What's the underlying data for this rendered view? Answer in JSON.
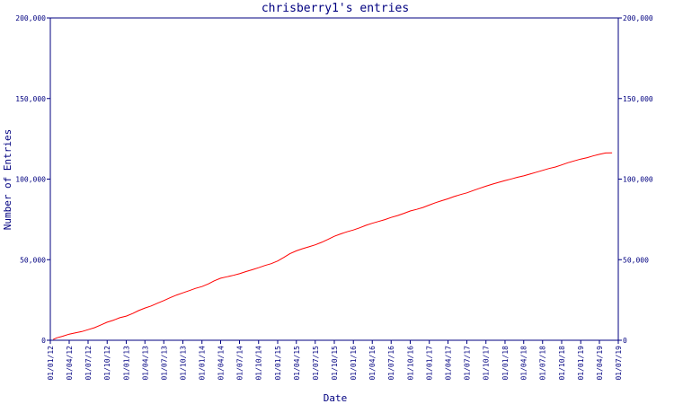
{
  "chart_data": {
    "type": "line",
    "title": "chrisberry1's entries",
    "xlabel": "Date",
    "ylabel": "Number of Entries",
    "ylim": [
      0,
      200000
    ],
    "y_ticks": [
      0,
      50000,
      100000,
      150000,
      200000
    ],
    "y_tick_labels": [
      "0",
      "50,000",
      "100,000",
      "150,000",
      "200,000"
    ],
    "x_range": [
      "2012-01-01",
      "2019-07-01"
    ],
    "x_ticks": [
      "2012-01-01",
      "2012-04-01",
      "2012-07-01",
      "2012-10-01",
      "2013-01-01",
      "2013-04-01",
      "2013-07-01",
      "2013-10-01",
      "2014-01-01",
      "2014-04-01",
      "2014-07-01",
      "2014-10-01",
      "2015-01-01",
      "2015-04-01",
      "2015-07-01",
      "2015-10-01",
      "2016-01-01",
      "2016-04-01",
      "2016-07-01",
      "2016-10-01",
      "2017-01-01",
      "2017-04-01",
      "2017-07-01",
      "2017-10-01",
      "2018-01-01",
      "2018-04-01",
      "2018-07-01",
      "2018-10-01",
      "2019-01-01",
      "2019-04-01",
      "2019-07-01"
    ],
    "x_tick_labels": [
      "01/01/12",
      "01/04/12",
      "01/07/12",
      "01/10/12",
      "01/01/13",
      "01/04/13",
      "01/07/13",
      "01/10/13",
      "01/01/14",
      "01/04/14",
      "01/07/14",
      "01/10/14",
      "01/01/15",
      "01/04/15",
      "01/07/15",
      "01/10/15",
      "01/01/16",
      "01/04/16",
      "01/07/16",
      "01/10/16",
      "01/01/17",
      "01/04/17",
      "01/07/17",
      "01/10/17",
      "01/01/18",
      "01/04/18",
      "01/07/18",
      "01/10/18",
      "01/01/19",
      "01/04/19",
      "01/07/19"
    ],
    "grid": false,
    "y_axis_right_mirror": true,
    "colors": {
      "frame": "#000080",
      "text": "#000080",
      "line": "#ff0000",
      "background": "#ffffff"
    },
    "series": [
      {
        "x": [
          "2012-01-15",
          "2012-02-01",
          "2012-03-01",
          "2012-04-01",
          "2012-05-01",
          "2012-06-01",
          "2012-07-01",
          "2012-08-01",
          "2012-09-01",
          "2012-10-01",
          "2012-11-01",
          "2012-12-01",
          "2013-01-01",
          "2013-02-01",
          "2013-03-01",
          "2013-04-01",
          "2013-05-01",
          "2013-06-01",
          "2013-07-01",
          "2013-08-01",
          "2013-09-01",
          "2013-10-01",
          "2013-11-01",
          "2013-12-01",
          "2014-01-01",
          "2014-02-01",
          "2014-03-01",
          "2014-04-01",
          "2014-05-01",
          "2014-06-01",
          "2014-07-01",
          "2014-08-01",
          "2014-09-01",
          "2014-10-01",
          "2014-11-01",
          "2014-12-01",
          "2015-01-01",
          "2015-02-01",
          "2015-03-01",
          "2015-04-01",
          "2015-05-01",
          "2015-06-01",
          "2015-07-01",
          "2015-08-01",
          "2015-09-01",
          "2015-10-01",
          "2015-11-01",
          "2015-12-01",
          "2016-01-01",
          "2016-02-01",
          "2016-03-01",
          "2016-04-01",
          "2016-05-01",
          "2016-06-01",
          "2016-07-01",
          "2016-08-01",
          "2016-09-01",
          "2016-10-01",
          "2016-11-01",
          "2016-12-01",
          "2017-01-01",
          "2017-02-01",
          "2017-03-01",
          "2017-04-01",
          "2017-05-01",
          "2017-06-01",
          "2017-07-01",
          "2017-08-01",
          "2017-09-01",
          "2017-10-01",
          "2017-11-01",
          "2017-12-01",
          "2018-01-01",
          "2018-02-01",
          "2018-03-01",
          "2018-04-01",
          "2018-05-01",
          "2018-06-01",
          "2018-07-01",
          "2018-08-01",
          "2018-09-01",
          "2018-10-01",
          "2018-11-01",
          "2018-12-01",
          "2019-01-01",
          "2019-02-01",
          "2019-03-01",
          "2019-04-01",
          "2019-05-01",
          "2019-06-01"
        ],
        "y": [
          500,
          1500,
          2500,
          3800,
          4600,
          5400,
          6600,
          7800,
          9500,
          11200,
          12500,
          14000,
          15000,
          16600,
          18400,
          20000,
          21300,
          23000,
          24600,
          26400,
          28100,
          29400,
          30800,
          32200,
          33300,
          35000,
          36900,
          38500,
          39400,
          40300,
          41300,
          42600,
          43800,
          45000,
          46400,
          47500,
          49200,
          51500,
          53700,
          55500,
          56800,
          58000,
          59200,
          60800,
          62600,
          64500,
          66000,
          67300,
          68400,
          69800,
          71300,
          72600,
          73700,
          74900,
          76200,
          77400,
          78800,
          80200,
          81200,
          82400,
          83900,
          85400,
          86600,
          87800,
          89200,
          90400,
          91500,
          92900,
          94300,
          95600,
          96900,
          98000,
          99100,
          100100,
          101100,
          102000,
          103100,
          104300,
          105400,
          106600,
          107500,
          108800,
          110200,
          111300,
          112400,
          113300,
          114400,
          115400,
          116200,
          116300
        ]
      }
    ]
  }
}
